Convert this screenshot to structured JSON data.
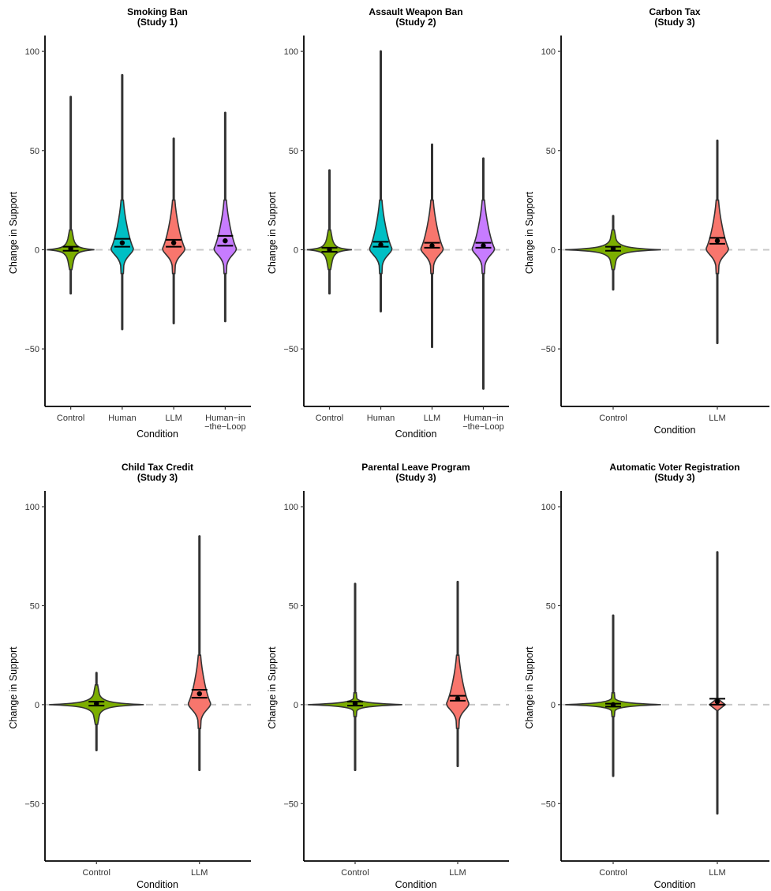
{
  "figure": {
    "y_axis_label": "Change in Support",
    "x_axis_label": "Condition",
    "zero_reference_line": "dashed-gray"
  },
  "colors": {
    "Control": "#7CAE00",
    "Human": "#00BFC4",
    "LLM": "#F8766D",
    "Human-in-the-Loop": "#C77CFF"
  },
  "chart_data": [
    {
      "type": "violin",
      "title": "Smoking Ban",
      "subtitle": "(Study 1)",
      "xlabel": "Condition",
      "ylabel": "Change in Support",
      "ylim": [
        -79,
        108
      ],
      "yticks": [
        100,
        50,
        0,
        -50
      ],
      "categories": [
        "Control",
        "Human",
        "LLM",
        "Human-in-the-Loop"
      ],
      "category_labels": [
        [
          "Control"
        ],
        [
          "Human"
        ],
        [
          "LLM"
        ],
        [
          "Human−in",
          "−the−Loop"
        ]
      ],
      "series": [
        {
          "name": "Control",
          "min": -22,
          "max": 77,
          "mean": 0.5,
          "ci": [
            -0.5,
            1.5
          ],
          "shape": "star-wide",
          "width": 1.0
        },
        {
          "name": "Human",
          "min": -40,
          "max": 88,
          "mean": 3.5,
          "ci": [
            1.5,
            5.5
          ],
          "shape": "bulb-up",
          "width": 0.55
        },
        {
          "name": "LLM",
          "min": -37,
          "max": 56,
          "mean": 3.5,
          "ci": [
            1.5,
            5
          ],
          "shape": "bulb-up",
          "width": 0.55
        },
        {
          "name": "Human-in-the-Loop",
          "min": -36,
          "max": 69,
          "mean": 4.5,
          "ci": [
            2,
            7
          ],
          "shape": "bulb-up",
          "width": 0.55
        }
      ]
    },
    {
      "type": "violin",
      "title": "Assault Weapon Ban",
      "subtitle": "(Study 2)",
      "xlabel": "Condition",
      "ylabel": "Change in Support",
      "ylim": [
        -79,
        108
      ],
      "yticks": [
        100,
        50,
        0,
        -50
      ],
      "categories": [
        "Control",
        "Human",
        "LLM",
        "Human-in-the-Loop"
      ],
      "category_labels": [
        [
          "Control"
        ],
        [
          "Human"
        ],
        [
          "LLM"
        ],
        [
          "Human−in",
          "−the−Loop"
        ]
      ],
      "series": [
        {
          "name": "Control",
          "min": -22,
          "max": 40,
          "mean": 0,
          "ci": [
            -1,
            1
          ],
          "shape": "star-wide",
          "width": 0.95
        },
        {
          "name": "Human",
          "min": -31,
          "max": 100,
          "mean": 2.5,
          "ci": [
            1.5,
            4
          ],
          "shape": "bulb-up",
          "width": 0.6
        },
        {
          "name": "LLM",
          "min": -49,
          "max": 53,
          "mean": 2,
          "ci": [
            1,
            3.5
          ],
          "shape": "bulb-up",
          "width": 0.6
        },
        {
          "name": "Human-in-the-Loop",
          "min": -70,
          "max": 46,
          "mean": 2,
          "ci": [
            1,
            3.5
          ],
          "shape": "bulb-up",
          "width": 0.6
        }
      ]
    },
    {
      "type": "violin",
      "title": "Carbon Tax",
      "subtitle": "(Study 3)",
      "xlabel": "Condition",
      "ylabel": "Change in Support",
      "ylim": [
        -79,
        108
      ],
      "yticks": [
        100,
        50,
        0,
        -50
      ],
      "categories": [
        "Control",
        "LLM"
      ],
      "category_labels": [
        [
          "Control"
        ],
        [
          "LLM"
        ]
      ],
      "series": [
        {
          "name": "Control",
          "min": -20,
          "max": 17,
          "mean": 0.5,
          "ci": [
            -0.5,
            1.5
          ],
          "shape": "star-wide",
          "width": 1.0
        },
        {
          "name": "LLM",
          "min": -47,
          "max": 55,
          "mean": 4.5,
          "ci": [
            3,
            6
          ],
          "shape": "bulb-up",
          "width": 0.3
        }
      ]
    },
    {
      "type": "violin",
      "title": "Child Tax Credit",
      "subtitle": "(Study 3)",
      "xlabel": "Condition",
      "ylabel": "Change in Support",
      "ylim": [
        -79,
        108
      ],
      "yticks": [
        100,
        50,
        0,
        -50
      ],
      "categories": [
        "Control",
        "LLM"
      ],
      "category_labels": [
        [
          "Control"
        ],
        [
          "LLM"
        ]
      ],
      "series": [
        {
          "name": "Control",
          "min": -23,
          "max": 16,
          "mean": 0.5,
          "ci": [
            -0.5,
            1.5
          ],
          "shape": "star-wide",
          "width": 1.0
        },
        {
          "name": "LLM",
          "min": -33,
          "max": 85,
          "mean": 5.5,
          "ci": [
            3.5,
            7.5
          ],
          "shape": "bulb-up",
          "width": 0.3
        }
      ]
    },
    {
      "type": "violin",
      "title": "Parental Leave Program",
      "subtitle": "(Study 3)",
      "xlabel": "Condition",
      "ylabel": "Change in Support",
      "ylim": [
        -79,
        108
      ],
      "yticks": [
        100,
        50,
        0,
        -50
      ],
      "categories": [
        "Control",
        "LLM"
      ],
      "category_labels": [
        [
          "Control"
        ],
        [
          "LLM"
        ]
      ],
      "series": [
        {
          "name": "Control",
          "min": -33,
          "max": 61,
          "mean": 0.5,
          "ci": [
            -0.5,
            1.5
          ],
          "shape": "spike-wide",
          "width": 1.0
        },
        {
          "name": "LLM",
          "min": -31,
          "max": 62,
          "mean": 3,
          "ci": [
            2,
            4.5
          ],
          "shape": "bulb-up",
          "width": 0.28
        }
      ]
    },
    {
      "type": "violin",
      "title": "Automatic Voter Registration",
      "subtitle": "(Study 3)",
      "xlabel": "Condition",
      "ylabel": "Change in Support",
      "ylim": [
        -79,
        108
      ],
      "yticks": [
        100,
        50,
        0,
        -50
      ],
      "categories": [
        "Control",
        "LLM"
      ],
      "category_labels": [
        [
          "Control"
        ],
        [
          "LLM"
        ]
      ],
      "series": [
        {
          "name": "Control",
          "min": -36,
          "max": 45,
          "mean": 0,
          "ci": [
            -1,
            0.5
          ],
          "shape": "spike-wide",
          "width": 1.0
        },
        {
          "name": "LLM",
          "min": -55,
          "max": 77,
          "mean": 1.5,
          "ci": [
            0,
            3
          ],
          "shape": "diamond-small",
          "width": 0.3
        }
      ]
    }
  ]
}
